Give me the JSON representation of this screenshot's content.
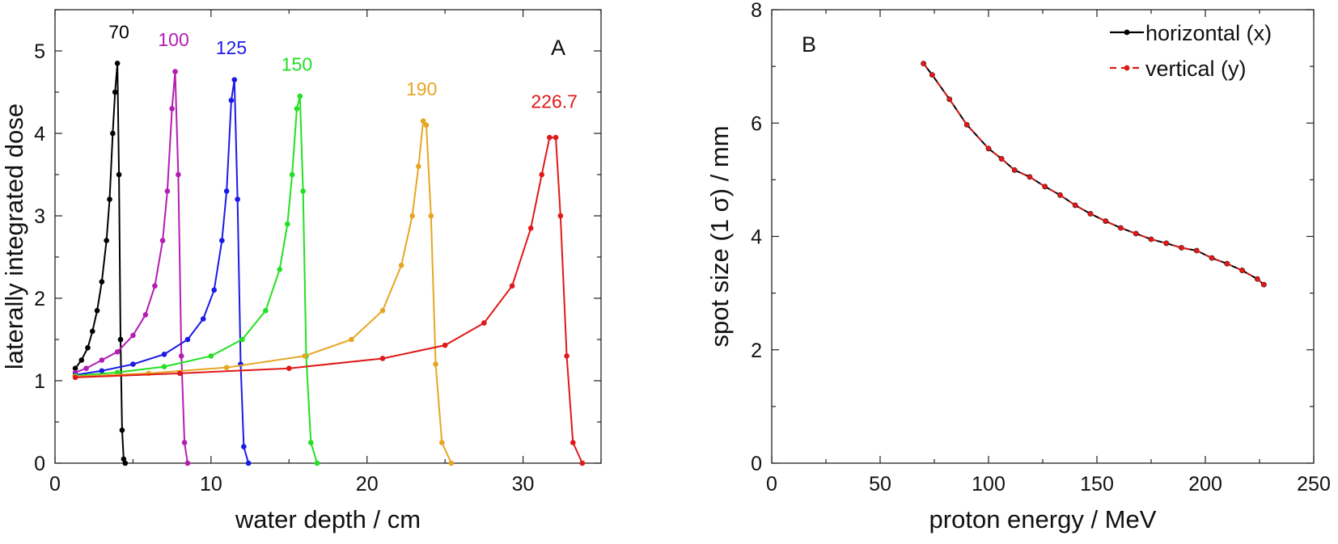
{
  "chart_data": [
    {
      "type": "line",
      "panel": "A",
      "xlabel": "water depth / cm",
      "ylabel": "laterally integrated dose",
      "xlim": [
        0,
        35
      ],
      "ylim": [
        0,
        5.5
      ],
      "xticks": [
        0,
        10,
        20,
        30
      ],
      "yticks": [
        0,
        1,
        2,
        3,
        4,
        5
      ],
      "series": [
        {
          "name": "70",
          "color": "#000000",
          "label_at": [
            4.1,
            5.15
          ],
          "x": [
            1.3,
            1.7,
            2.1,
            2.4,
            2.7,
            3.0,
            3.3,
            3.5,
            3.7,
            3.85,
            4.0,
            4.1,
            4.2,
            4.3,
            4.4,
            4.5
          ],
          "y": [
            1.15,
            1.25,
            1.4,
            1.6,
            1.85,
            2.2,
            2.7,
            3.2,
            4.0,
            4.5,
            4.85,
            3.5,
            1.5,
            0.4,
            0.05,
            0.0
          ]
        },
        {
          "name": "100",
          "color": "#b31db3",
          "label_at": [
            7.6,
            5.06
          ],
          "x": [
            1.3,
            2.0,
            3.0,
            4.0,
            5.0,
            5.8,
            6.4,
            6.9,
            7.2,
            7.5,
            7.7,
            7.9,
            8.1,
            8.3,
            8.5
          ],
          "y": [
            1.1,
            1.15,
            1.25,
            1.35,
            1.55,
            1.8,
            2.15,
            2.7,
            3.3,
            4.3,
            4.75,
            3.5,
            1.3,
            0.25,
            0.0
          ]
        },
        {
          "name": "125",
          "color": "#1a1ae6",
          "label_at": [
            11.3,
            4.96
          ],
          "x": [
            1.3,
            3.0,
            5.0,
            7.0,
            8.5,
            9.5,
            10.2,
            10.7,
            11.0,
            11.3,
            11.5,
            11.7,
            11.9,
            12.1,
            12.4
          ],
          "y": [
            1.07,
            1.12,
            1.2,
            1.32,
            1.5,
            1.75,
            2.1,
            2.7,
            3.3,
            4.4,
            4.65,
            3.2,
            1.2,
            0.2,
            0.0
          ]
        },
        {
          "name": "150",
          "color": "#22e022",
          "label_at": [
            15.5,
            4.76
          ],
          "x": [
            1.3,
            4.0,
            7.0,
            10.0,
            12.0,
            13.5,
            14.4,
            14.9,
            15.2,
            15.5,
            15.7,
            15.9,
            16.1,
            16.4,
            16.8
          ],
          "y": [
            1.06,
            1.1,
            1.17,
            1.3,
            1.5,
            1.85,
            2.35,
            2.9,
            3.5,
            4.3,
            4.45,
            3.3,
            1.3,
            0.25,
            0.0
          ]
        },
        {
          "name": "190",
          "color": "#e6a623",
          "label_at": [
            23.5,
            4.46
          ],
          "x": [
            1.3,
            6.0,
            11.0,
            16.0,
            19.0,
            21.0,
            22.2,
            22.9,
            23.3,
            23.6,
            23.8,
            24.1,
            24.4,
            24.8,
            25.4
          ],
          "y": [
            1.05,
            1.09,
            1.16,
            1.3,
            1.5,
            1.85,
            2.4,
            3.0,
            3.6,
            4.15,
            4.1,
            3.0,
            1.2,
            0.25,
            0.0
          ]
        },
        {
          "name": "226.7",
          "color": "#e01818",
          "label_at": [
            32.0,
            4.31
          ],
          "x": [
            1.3,
            8.0,
            15.0,
            21.0,
            25.0,
            27.5,
            29.3,
            30.5,
            31.2,
            31.7,
            32.1,
            32.4,
            32.8,
            33.2,
            33.8
          ],
          "y": [
            1.04,
            1.09,
            1.15,
            1.27,
            1.43,
            1.7,
            2.15,
            2.85,
            3.5,
            3.95,
            3.95,
            3.0,
            1.3,
            0.25,
            0.0
          ]
        }
      ]
    },
    {
      "type": "line",
      "panel": "B",
      "xlabel": "proton energy / MeV",
      "ylabel": "spot size (1 σ) / mm",
      "xlim": [
        0,
        250
      ],
      "ylim": [
        0,
        8
      ],
      "xticks": [
        0,
        50,
        100,
        150,
        200,
        250
      ],
      "yticks": [
        0,
        2,
        4,
        6,
        8
      ],
      "legend": {
        "position": "top-right"
      },
      "x": [
        70,
        74,
        82,
        90,
        100,
        106,
        112,
        119,
        126,
        133,
        140,
        147,
        154,
        161,
        168,
        175,
        182,
        189,
        196,
        203,
        210,
        217,
        224,
        227
      ],
      "series": [
        {
          "name": "horizontal (x)",
          "color": "#000000",
          "style": "solid",
          "values": [
            7.05,
            6.85,
            6.42,
            5.97,
            5.55,
            5.37,
            5.17,
            5.05,
            4.88,
            4.73,
            4.55,
            4.4,
            4.27,
            4.15,
            4.05,
            3.95,
            3.88,
            3.8,
            3.75,
            3.62,
            3.52,
            3.4,
            3.25,
            3.15
          ]
        },
        {
          "name": "vertical (y)",
          "color": "#e01818",
          "style": "dashed",
          "values": [
            7.05,
            6.85,
            6.42,
            5.97,
            5.55,
            5.37,
            5.17,
            5.05,
            4.88,
            4.73,
            4.55,
            4.4,
            4.27,
            4.15,
            4.05,
            3.95,
            3.88,
            3.8,
            3.75,
            3.62,
            3.52,
            3.4,
            3.25,
            3.15
          ]
        }
      ]
    }
  ]
}
